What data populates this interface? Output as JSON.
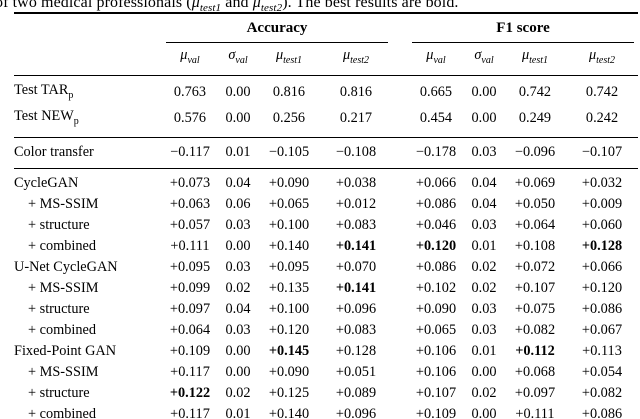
{
  "caption": {
    "prefix": "of two medical professionals (",
    "mu1": "μ",
    "mu1_sub": "test1",
    "and": " and ",
    "mu2": "μ",
    "mu2_sub": "test2",
    "suffix": "). The best results are bold."
  },
  "table": {
    "groups": [
      {
        "label": "Accuracy"
      },
      {
        "label": "F1 score"
      }
    ],
    "subheaders": [
      {
        "main": "μ",
        "sub": "val"
      },
      {
        "main": "σ",
        "sub": "val"
      },
      {
        "main": "μ",
        "sub": "test1"
      },
      {
        "main": "μ",
        "sub": "test2"
      },
      {
        "main": "μ",
        "sub": "val"
      },
      {
        "main": "σ",
        "sub": "val"
      },
      {
        "main": "μ",
        "sub": "test1"
      },
      {
        "main": "μ",
        "sub": "test2"
      }
    ],
    "sections": [
      {
        "rows": [
          {
            "label": "Test TAR",
            "label_sub": "p",
            "indent": false,
            "cells": [
              "0.763",
              "0.00",
              "0.816",
              "0.816",
              "0.665",
              "0.00",
              "0.742",
              "0.742"
            ],
            "bold": []
          },
          {
            "label": "Test NEW",
            "label_sub": "p",
            "indent": false,
            "cells": [
              "0.576",
              "0.00",
              "0.256",
              "0.217",
              "0.454",
              "0.00",
              "0.249",
              "0.242"
            ],
            "bold": []
          }
        ]
      },
      {
        "rows": [
          {
            "label": "Color transfer",
            "indent": false,
            "cells": [
              "−0.117",
              "0.01",
              "−0.105",
              "−0.108",
              "−0.178",
              "0.03",
              "−0.096",
              "−0.107"
            ],
            "bold": []
          }
        ]
      },
      {
        "rows": [
          {
            "label": "CycleGAN",
            "indent": false,
            "cells": [
              "+0.073",
              "0.04",
              "+0.090",
              "+0.038",
              "+0.066",
              "0.04",
              "+0.069",
              "+0.032"
            ],
            "bold": []
          },
          {
            "label": "+ MS-SSIM",
            "indent": true,
            "cells": [
              "+0.063",
              "0.06",
              "+0.065",
              "+0.012",
              "+0.086",
              "0.04",
              "+0.050",
              "+0.009"
            ],
            "bold": []
          },
          {
            "label": "+ structure",
            "indent": true,
            "cells": [
              "+0.057",
              "0.03",
              "+0.100",
              "+0.083",
              "+0.046",
              "0.03",
              "+0.064",
              "+0.060"
            ],
            "bold": []
          },
          {
            "label": "+ combined",
            "indent": true,
            "cells": [
              "+0.111",
              "0.00",
              "+0.140",
              "+0.141",
              "+0.120",
              "0.01",
              "+0.108",
              "+0.128"
            ],
            "bold": [
              3,
              4,
              7
            ]
          },
          {
            "label": "U-Net CycleGAN",
            "indent": false,
            "cells": [
              "+0.095",
              "0.03",
              "+0.095",
              "+0.070",
              "+0.086",
              "0.02",
              "+0.072",
              "+0.066"
            ],
            "bold": []
          },
          {
            "label": "+ MS-SSIM",
            "indent": true,
            "cells": [
              "+0.099",
              "0.02",
              "+0.135",
              "+0.141",
              "+0.102",
              "0.02",
              "+0.107",
              "+0.120"
            ],
            "bold": [
              3
            ]
          },
          {
            "label": "+ structure",
            "indent": true,
            "cells": [
              "+0.097",
              "0.04",
              "+0.100",
              "+0.096",
              "+0.090",
              "0.03",
              "+0.075",
              "+0.086"
            ],
            "bold": []
          },
          {
            "label": "+ combined",
            "indent": true,
            "cells": [
              "+0.064",
              "0.03",
              "+0.120",
              "+0.083",
              "+0.065",
              "0.03",
              "+0.082",
              "+0.067"
            ],
            "bold": []
          },
          {
            "label": "Fixed-Point GAN",
            "indent": false,
            "cells": [
              "+0.109",
              "0.00",
              "+0.145",
              "+0.128",
              "+0.106",
              "0.01",
              "+0.112",
              "+0.113"
            ],
            "bold": [
              2,
              6
            ]
          },
          {
            "label": "+ MS-SSIM",
            "indent": true,
            "cells": [
              "+0.117",
              "0.00",
              "+0.090",
              "+0.051",
              "+0.106",
              "0.00",
              "+0.068",
              "+0.054"
            ],
            "bold": []
          },
          {
            "label": "+ structure",
            "indent": true,
            "cells": [
              "+0.122",
              "0.02",
              "+0.125",
              "+0.089",
              "+0.107",
              "0.02",
              "+0.097",
              "+0.082"
            ],
            "bold": [
              0
            ]
          },
          {
            "label": "+ combined",
            "indent": true,
            "cells": [
              "+0.117",
              "0.01",
              "+0.140",
              "+0.096",
              "+0.109",
              "0.00",
              "+0.111",
              "+0.086"
            ],
            "bold": []
          }
        ]
      }
    ]
  }
}
